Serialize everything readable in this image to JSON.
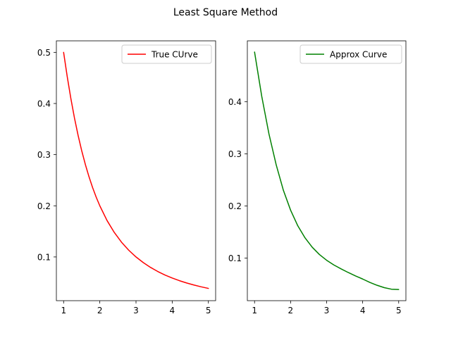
{
  "figure": {
    "title": "Least Square Method"
  },
  "chart_data": [
    {
      "type": "line",
      "title": "",
      "xlabel": "",
      "ylabel": "",
      "xlim": [
        0.8,
        5.2
      ],
      "ylim": [
        0.0145,
        0.5225
      ],
      "xticks": [
        1,
        2,
        3,
        4,
        5
      ],
      "yticks": [
        0.1,
        0.2,
        0.3,
        0.4,
        0.5
      ],
      "grid": false,
      "legend": "top-right",
      "series": [
        {
          "name": "True CUrve",
          "color": "#ff0000",
          "x": [
            1.0,
            1.1,
            1.2,
            1.3,
            1.4,
            1.5,
            1.6,
            1.7,
            1.8,
            1.9,
            2.0,
            2.2,
            2.4,
            2.6,
            2.8,
            3.0,
            3.2,
            3.4,
            3.6,
            3.8,
            4.0,
            4.2,
            4.4,
            4.6,
            4.8,
            5.0
          ],
          "y": [
            0.5,
            0.4525,
            0.4098,
            0.3716,
            0.3378,
            0.3077,
            0.2809,
            0.2571,
            0.2358,
            0.2169,
            0.2,
            0.1712,
            0.1479,
            0.1288,
            0.1131,
            0.1,
            0.089,
            0.0796,
            0.0716,
            0.0647,
            0.0588,
            0.0536,
            0.0491,
            0.0451,
            0.0416,
            0.0385
          ]
        }
      ]
    },
    {
      "type": "line",
      "title": "",
      "xlabel": "",
      "ylabel": "",
      "xlim": [
        0.8,
        5.2
      ],
      "ylim": [
        0.0185,
        0.5165
      ],
      "xticks": [
        1,
        2,
        3,
        4,
        5
      ],
      "yticks": [
        0.1,
        0.2,
        0.3,
        0.4
      ],
      "grid": false,
      "legend": "top-right",
      "series": [
        {
          "name": "Approx Curve",
          "color": "#008000",
          "x": [
            1.0,
            1.2,
            1.4,
            1.6,
            1.8,
            2.0,
            2.2,
            2.4,
            2.6,
            2.8,
            3.0,
            3.2,
            3.4,
            3.6,
            3.8,
            4.0,
            4.2,
            4.4,
            4.6,
            4.8,
            5.0
          ],
          "y": [
            0.495,
            0.41,
            0.338,
            0.279,
            0.23,
            0.192,
            0.162,
            0.139,
            0.121,
            0.107,
            0.096,
            0.087,
            0.0795,
            0.0725,
            0.066,
            0.06,
            0.0535,
            0.048,
            0.0435,
            0.0405,
            0.04
          ]
        }
      ]
    }
  ]
}
